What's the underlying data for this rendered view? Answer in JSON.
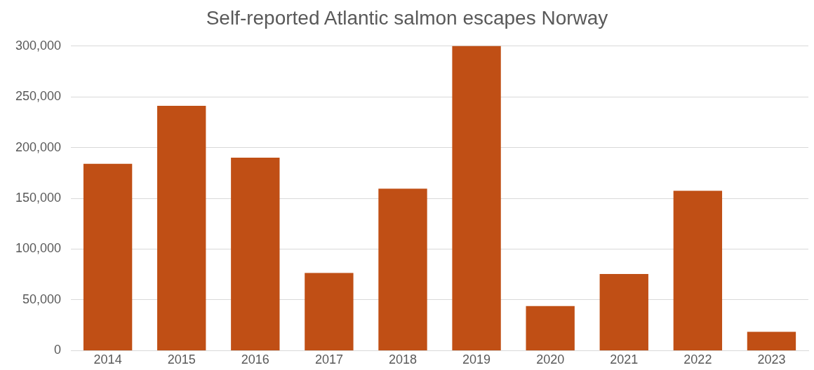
{
  "chart_data": {
    "type": "bar",
    "title": "Self-reported Atlantic salmon escapes Norway",
    "categories": [
      "2014",
      "2015",
      "2016",
      "2017",
      "2018",
      "2019",
      "2020",
      "2021",
      "2022",
      "2023"
    ],
    "values": [
      184000,
      241000,
      190000,
      76500,
      159500,
      300000,
      44000,
      75500,
      157500,
      18500
    ],
    "color": "#c04f15",
    "ylim": [
      0,
      300000
    ],
    "yticks": [
      {
        "value": 0,
        "label": "0"
      },
      {
        "value": 50000,
        "label": "50,000"
      },
      {
        "value": 100000,
        "label": "100,000"
      },
      {
        "value": 150000,
        "label": "150,000"
      },
      {
        "value": 200000,
        "label": "200,000"
      },
      {
        "value": 250000,
        "label": "250,000"
      },
      {
        "value": 300000,
        "label": "300,000"
      }
    ],
    "grid": "y",
    "legend": false
  }
}
